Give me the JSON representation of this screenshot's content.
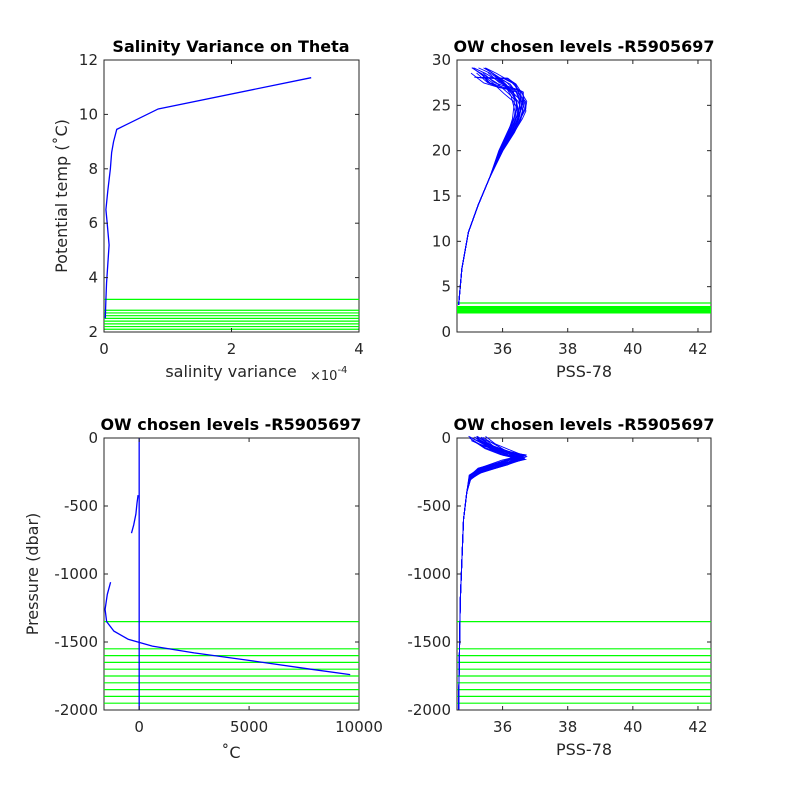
{
  "chart_data": [
    {
      "type": "line",
      "title": "Salinity Variance on Theta",
      "xlabel": "salinity variance",
      "x_multiplier": "×10",
      "x_multiplier_exp": "-4",
      "ylabel": "Potential temp (˚C)",
      "xlim": [
        0,
        4
      ],
      "ylim": [
        2,
        12
      ],
      "x_ticks": [
        0,
        2,
        4
      ],
      "y_ticks": [
        2,
        4,
        6,
        8,
        10,
        12
      ],
      "colors": {
        "series": "#0000ff",
        "levels": "#00ff00"
      },
      "series": [
        {
          "x": [
            3.25,
            0.85,
            0.2,
            0.15,
            0.12,
            0.1,
            0.06,
            0.03,
            0.05,
            0.08,
            0.06,
            0.04,
            0.03,
            0.02
          ],
          "y": [
            11.35,
            10.2,
            9.45,
            9.0,
            8.6,
            8.0,
            7.2,
            6.5,
            6.0,
            5.2,
            4.5,
            3.8,
            3.2,
            2.5
          ]
        }
      ],
      "levels": [
        3.2,
        2.8,
        2.7,
        2.6,
        2.5,
        2.4,
        2.3,
        2.2,
        2.1
      ]
    },
    {
      "type": "line",
      "title": "OW chosen levels -R5905697",
      "xlabel": "PSS-78",
      "ylabel": "",
      "xlim": [
        34.6,
        42.4
      ],
      "ylim": [
        0,
        30
      ],
      "x_ticks": [
        36,
        38,
        40,
        42
      ],
      "y_ticks": [
        0,
        5,
        10,
        15,
        20,
        25,
        30
      ],
      "colors": {
        "series": "#0000ff",
        "levels": "#00ff00"
      },
      "profile": {
        "s": [
          34.65,
          34.75,
          34.95,
          35.25,
          35.6,
          35.95,
          36.25,
          36.45,
          36.55,
          36.5,
          36.3,
          36.0,
          35.6,
          35.3
        ],
        "t": [
          3,
          7,
          11,
          14,
          17,
          20,
          22,
          23.5,
          24.8,
          26.0,
          26.8,
          27.5,
          28.0,
          28.6
        ]
      },
      "profile_count": 22,
      "levels": [
        3.2,
        2.8,
        2.7,
        2.6,
        2.5,
        2.4,
        2.3,
        2.2,
        2.1
      ]
    },
    {
      "type": "line",
      "title": "OW chosen levels -R5905697",
      "xlabel": "˚C",
      "ylabel": "Pressure (dbar)",
      "xlim": [
        -1600,
        10000
      ],
      "ylim": [
        -2000,
        0
      ],
      "x_ticks": [
        0,
        5000,
        10000
      ],
      "y_ticks": [
        0,
        -500,
        -1000,
        -1500,
        -2000
      ],
      "colors": {
        "series": "#0000ff",
        "levels": "#00ff00"
      },
      "series": [
        {
          "x": [
            0,
            0,
            0,
            0
          ],
          "y": [
            0,
            -700,
            -1400,
            -2000
          ]
        },
        {
          "x": [
            -50,
            -100,
            -150,
            -250,
            -350
          ],
          "y": [
            -420,
            -480,
            -560,
            -640,
            -700
          ]
        },
        {
          "x": [
            -1300,
            -1450,
            -1550,
            -1480,
            -1150,
            -500,
            600,
            2500,
            5200,
            7800,
            9600
          ],
          "y": [
            -1060,
            -1150,
            -1260,
            -1350,
            -1420,
            -1480,
            -1530,
            -1580,
            -1640,
            -1700,
            -1740
          ]
        }
      ],
      "levels": [
        -1350,
        -1550,
        -1600,
        -1650,
        -1700,
        -1750,
        -1800,
        -1850,
        -1900,
        -1950
      ]
    },
    {
      "type": "line",
      "title": "OW chosen levels -R5905697",
      "xlabel": "PSS-78",
      "ylabel": "",
      "xlim": [
        34.6,
        42.4
      ],
      "ylim": [
        -2000,
        0
      ],
      "x_ticks": [
        36,
        38,
        40,
        42
      ],
      "y_ticks": [
        0,
        -500,
        -1000,
        -1500,
        -2000
      ],
      "colors": {
        "series": "#0000ff",
        "levels": "#00ff00"
      },
      "profile": {
        "s": [
          35.2,
          35.6,
          36.1,
          36.6,
          36.1,
          35.3,
          35.0,
          34.9,
          34.8,
          34.75,
          34.7,
          34.68,
          34.66,
          34.65
        ],
        "p": [
          -5,
          -60,
          -110,
          -140,
          -180,
          -240,
          -290,
          -400,
          -600,
          -900,
          -1200,
          -1500,
          -1800,
          -2000
        ]
      },
      "profile_count": 22,
      "levels": [
        -1350,
        -1550,
        -1600,
        -1650,
        -1700,
        -1750,
        -1800,
        -1850,
        -1900,
        -1950
      ]
    }
  ]
}
